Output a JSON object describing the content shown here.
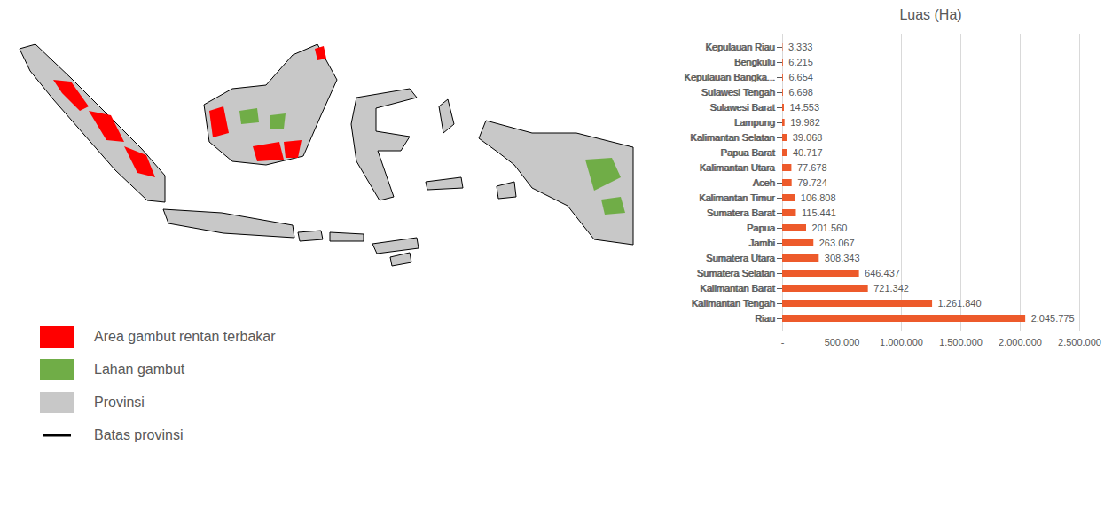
{
  "chart_data": {
    "type": "bar",
    "title": "Luas (Ha)",
    "orientation": "horizontal",
    "categories": [
      "Kepulauan Riau",
      "Bengkulu",
      "Kepulauan Bangka...",
      "Sulawesi Tengah",
      "Sulawesi Barat",
      "Lampung",
      "Kalimantan Selatan",
      "Papua Barat",
      "Kalimantan Utara",
      "Aceh",
      "Kalimantan Timur",
      "Sumatera Barat",
      "Papua",
      "Jambi",
      "Sumatera Utara",
      "Sumatera Selatan",
      "Kalimantan Barat",
      "Kalimantan Tengah",
      "Riau"
    ],
    "values": [
      3333,
      6215,
      6654,
      6698,
      14553,
      19982,
      39068,
      40717,
      77678,
      79724,
      106808,
      115441,
      201560,
      263067,
      308343,
      646437,
      721342,
      1261840,
      2045775
    ],
    "value_labels": [
      "3.333",
      "6.215",
      "6.654",
      "6.698",
      "14.553",
      "19.982",
      "39.068",
      "40.717",
      "77.678",
      "79.724",
      "106.808",
      "115.441",
      "201.560",
      "263.067",
      "308.343",
      "646.437",
      "721.342",
      "1.261.840",
      "2.045.775"
    ],
    "color": "#ed5a2b",
    "xlim": [
      0,
      2500000
    ],
    "xticks": [
      {
        "value": 0,
        "label": "-"
      },
      {
        "value": 500000,
        "label": "500.000"
      },
      {
        "value": 1000000,
        "label": "1.000.000"
      },
      {
        "value": 1500000,
        "label": "1.500.000"
      },
      {
        "value": 2000000,
        "label": "2.000.000"
      },
      {
        "value": 2500000,
        "label": "2.500.000"
      }
    ],
    "grid": true,
    "data_labels": true
  },
  "map": {
    "legend": [
      {
        "label": "Area gambut rentan terbakar",
        "color": "#ff0000",
        "marker": "square"
      },
      {
        "label": "Lahan gambut",
        "color": "#70ad47",
        "marker": "square"
      },
      {
        "label": "Provinsi",
        "color": "#c8c8c8",
        "marker": "square"
      },
      {
        "label": "Batas provinsi",
        "color": "#000000",
        "marker": "line"
      }
    ]
  }
}
